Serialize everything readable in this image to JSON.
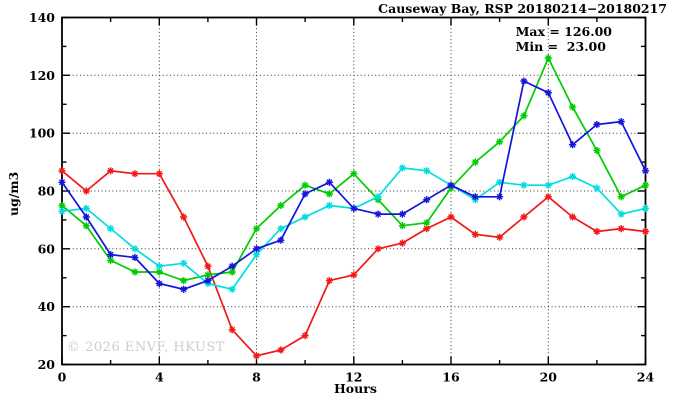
{
  "header": {
    "title": "Causeway Bay, RSP 20180214−20180217"
  },
  "annotation": {
    "max_label": "Max = 126.00",
    "min_label": "Min =  23.00"
  },
  "watermark": "© 2026 ENVF, HKUST",
  "chart_data": {
    "type": "line",
    "title": "Causeway Bay, RSP 20180214−20180217",
    "xlabel": "Hours",
    "ylabel": "ug/m3",
    "xlim": [
      0,
      24
    ],
    "ylim": [
      20,
      140
    ],
    "grid": true,
    "legend_position": "none",
    "x_major_ticks": [
      0,
      4,
      8,
      12,
      16,
      20,
      24
    ],
    "x_minor_ticks": [
      2,
      6,
      10,
      14,
      18,
      22
    ],
    "y_major_ticks": [
      20,
      40,
      60,
      80,
      100,
      120,
      140
    ],
    "y_minor_ticks": [
      30,
      50,
      70,
      90,
      110,
      130
    ],
    "x_gridlines": [
      4,
      8,
      12,
      16,
      20
    ],
    "y_gridlines": [
      40,
      60,
      80,
      100,
      120
    ],
    "x": [
      0,
      1,
      2,
      3,
      4,
      5,
      6,
      7,
      8,
      9,
      10,
      11,
      12,
      13,
      14,
      15,
      16,
      17,
      18,
      19,
      20,
      21,
      22,
      23,
      24
    ],
    "series": [
      {
        "name": "red-series",
        "color": "#f21818",
        "values": [
          87,
          80,
          87,
          86,
          86,
          71,
          54,
          32,
          23,
          25,
          30,
          49,
          51,
          60,
          62,
          67,
          71,
          65,
          64,
          71,
          78,
          71,
          66,
          67,
          66
        ]
      },
      {
        "name": "green-series",
        "color": "#00cc00",
        "values": [
          75,
          68,
          56,
          52,
          52,
          49,
          51,
          52,
          67,
          75,
          82,
          79,
          86,
          77,
          68,
          69,
          81,
          90,
          97,
          106,
          126,
          109,
          94,
          78,
          82
        ]
      },
      {
        "name": "cyan-series",
        "color": "#00dde0",
        "values": [
          73,
          74,
          67,
          60,
          54,
          55,
          48,
          46,
          58,
          67,
          71,
          75,
          74,
          78,
          88,
          87,
          82,
          77,
          83,
          82,
          82,
          85,
          81,
          72,
          74
        ]
      },
      {
        "name": "blue-series",
        "color": "#1414dd",
        "values": [
          83,
          71,
          58,
          57,
          48,
          46,
          49,
          54,
          60,
          63,
          79,
          83,
          74,
          72,
          72,
          77,
          82,
          78,
          78,
          118,
          114,
          96,
          103,
          104,
          87
        ]
      }
    ],
    "stats": {
      "max": 126.0,
      "min": 23.0
    }
  }
}
